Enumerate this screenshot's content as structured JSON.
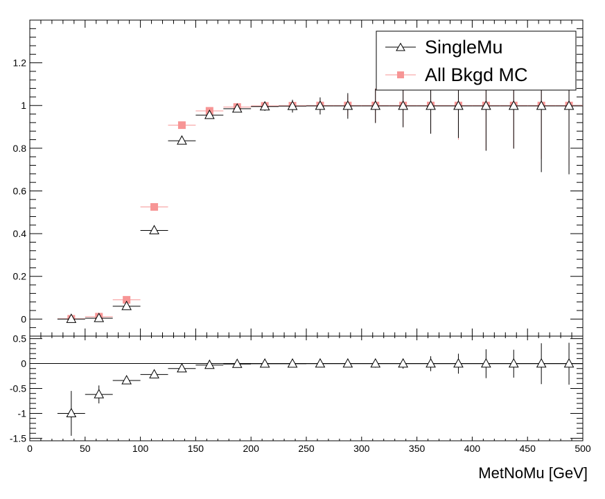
{
  "chart_data": [
    {
      "type": "scatter",
      "panel": "main",
      "xlabel": "",
      "ylabel": "",
      "xlim": [
        0,
        500
      ],
      "ylim": [
        -0.08,
        1.4
      ],
      "grid": false,
      "legend_position": "top-right",
      "x_ticks": [
        0,
        50,
        100,
        150,
        200,
        250,
        300,
        350,
        400,
        450,
        500
      ],
      "y_ticks": [
        0,
        0.2,
        0.4,
        0.6,
        0.8,
        1,
        1.2
      ],
      "y_tick_labels": [
        "0",
        "0.2",
        "0.4",
        "0.6",
        "0.8",
        "1",
        "1.2"
      ],
      "bin_width": 25,
      "x": [
        37.5,
        62.5,
        87.5,
        112.5,
        137.5,
        162.5,
        187.5,
        212.5,
        237.5,
        262.5,
        287.5,
        312.5,
        337.5,
        362.5,
        387.5,
        412.5,
        437.5,
        462.5,
        487.5
      ],
      "series": [
        {
          "name": "SingleMu",
          "marker": "open-triangle",
          "color": "#000000",
          "values": [
            0.0,
            0.004,
            0.06,
            0.415,
            0.835,
            0.955,
            0.985,
            0.995,
            0.997,
            0.998,
            0.998,
            0.998,
            0.998,
            0.998,
            0.998,
            0.998,
            0.998,
            0.998,
            0.998
          ],
          "yerr": [
            0.002,
            0.004,
            0.01,
            0.006,
            0.006,
            0.006,
            0.01,
            0.02,
            0.03,
            0.04,
            0.06,
            0.08,
            0.1,
            0.13,
            0.15,
            0.21,
            0.2,
            0.31,
            0.32
          ]
        },
        {
          "name": "All Bkgd MC",
          "marker": "filled-square",
          "color": "#f79595",
          "values": [
            0.001,
            0.011,
            0.09,
            0.525,
            0.908,
            0.975,
            0.993,
            0.998,
            0.999,
            1.0,
            1.0,
            1.0,
            1.0,
            1.0,
            1.0,
            1.0,
            1.0,
            1.0,
            1.0
          ],
          "yerr": [
            0.002,
            0.004,
            0.008,
            0.006,
            0.004,
            0.004,
            0.005,
            0.01,
            0.02,
            0.03,
            0.05,
            0.08,
            0.1,
            0.13,
            0.16,
            0.21,
            0.2,
            0.25,
            0.28
          ]
        }
      ]
    },
    {
      "type": "scatter",
      "panel": "ratio",
      "xlabel": "MetNoMu [GeV]",
      "ylabel": "",
      "xlim": [
        0,
        500
      ],
      "ylim": [
        -1.55,
        0.55
      ],
      "grid": false,
      "x_ticks": [
        0,
        50,
        100,
        150,
        200,
        250,
        300,
        350,
        400,
        450,
        500
      ],
      "x_tick_labels": [
        "0",
        "50",
        "100",
        "150",
        "200",
        "250",
        "300",
        "350",
        "400",
        "450",
        "500"
      ],
      "y_ticks": [
        -1.5,
        -1,
        -0.5,
        0,
        0.5
      ],
      "y_tick_labels": [
        "-1.5",
        "-1",
        "-0.5",
        "0",
        "0.5"
      ],
      "bin_width": 25,
      "x": [
        37.5,
        62.5,
        87.5,
        112.5,
        137.5,
        162.5,
        187.5,
        212.5,
        237.5,
        262.5,
        287.5,
        312.5,
        337.5,
        362.5,
        387.5,
        412.5,
        437.5,
        462.5,
        487.5
      ],
      "series": [
        {
          "name": "",
          "marker": "open-triangle",
          "color": "#000000",
          "values": [
            -1.0,
            -0.62,
            -0.34,
            -0.22,
            -0.1,
            -0.03,
            -0.01,
            -0.005,
            -0.005,
            -0.003,
            -0.003,
            -0.003,
            -0.003,
            -0.003,
            -0.003,
            -0.003,
            -0.003,
            -0.003,
            -0.003
          ],
          "yerr": [
            0.45,
            0.18,
            0.04,
            0.03,
            0.02,
            0.01,
            0.015,
            0.02,
            0.03,
            0.04,
            0.06,
            0.08,
            0.1,
            0.15,
            0.2,
            0.29,
            0.28,
            0.41,
            0.42
          ]
        }
      ]
    }
  ]
}
